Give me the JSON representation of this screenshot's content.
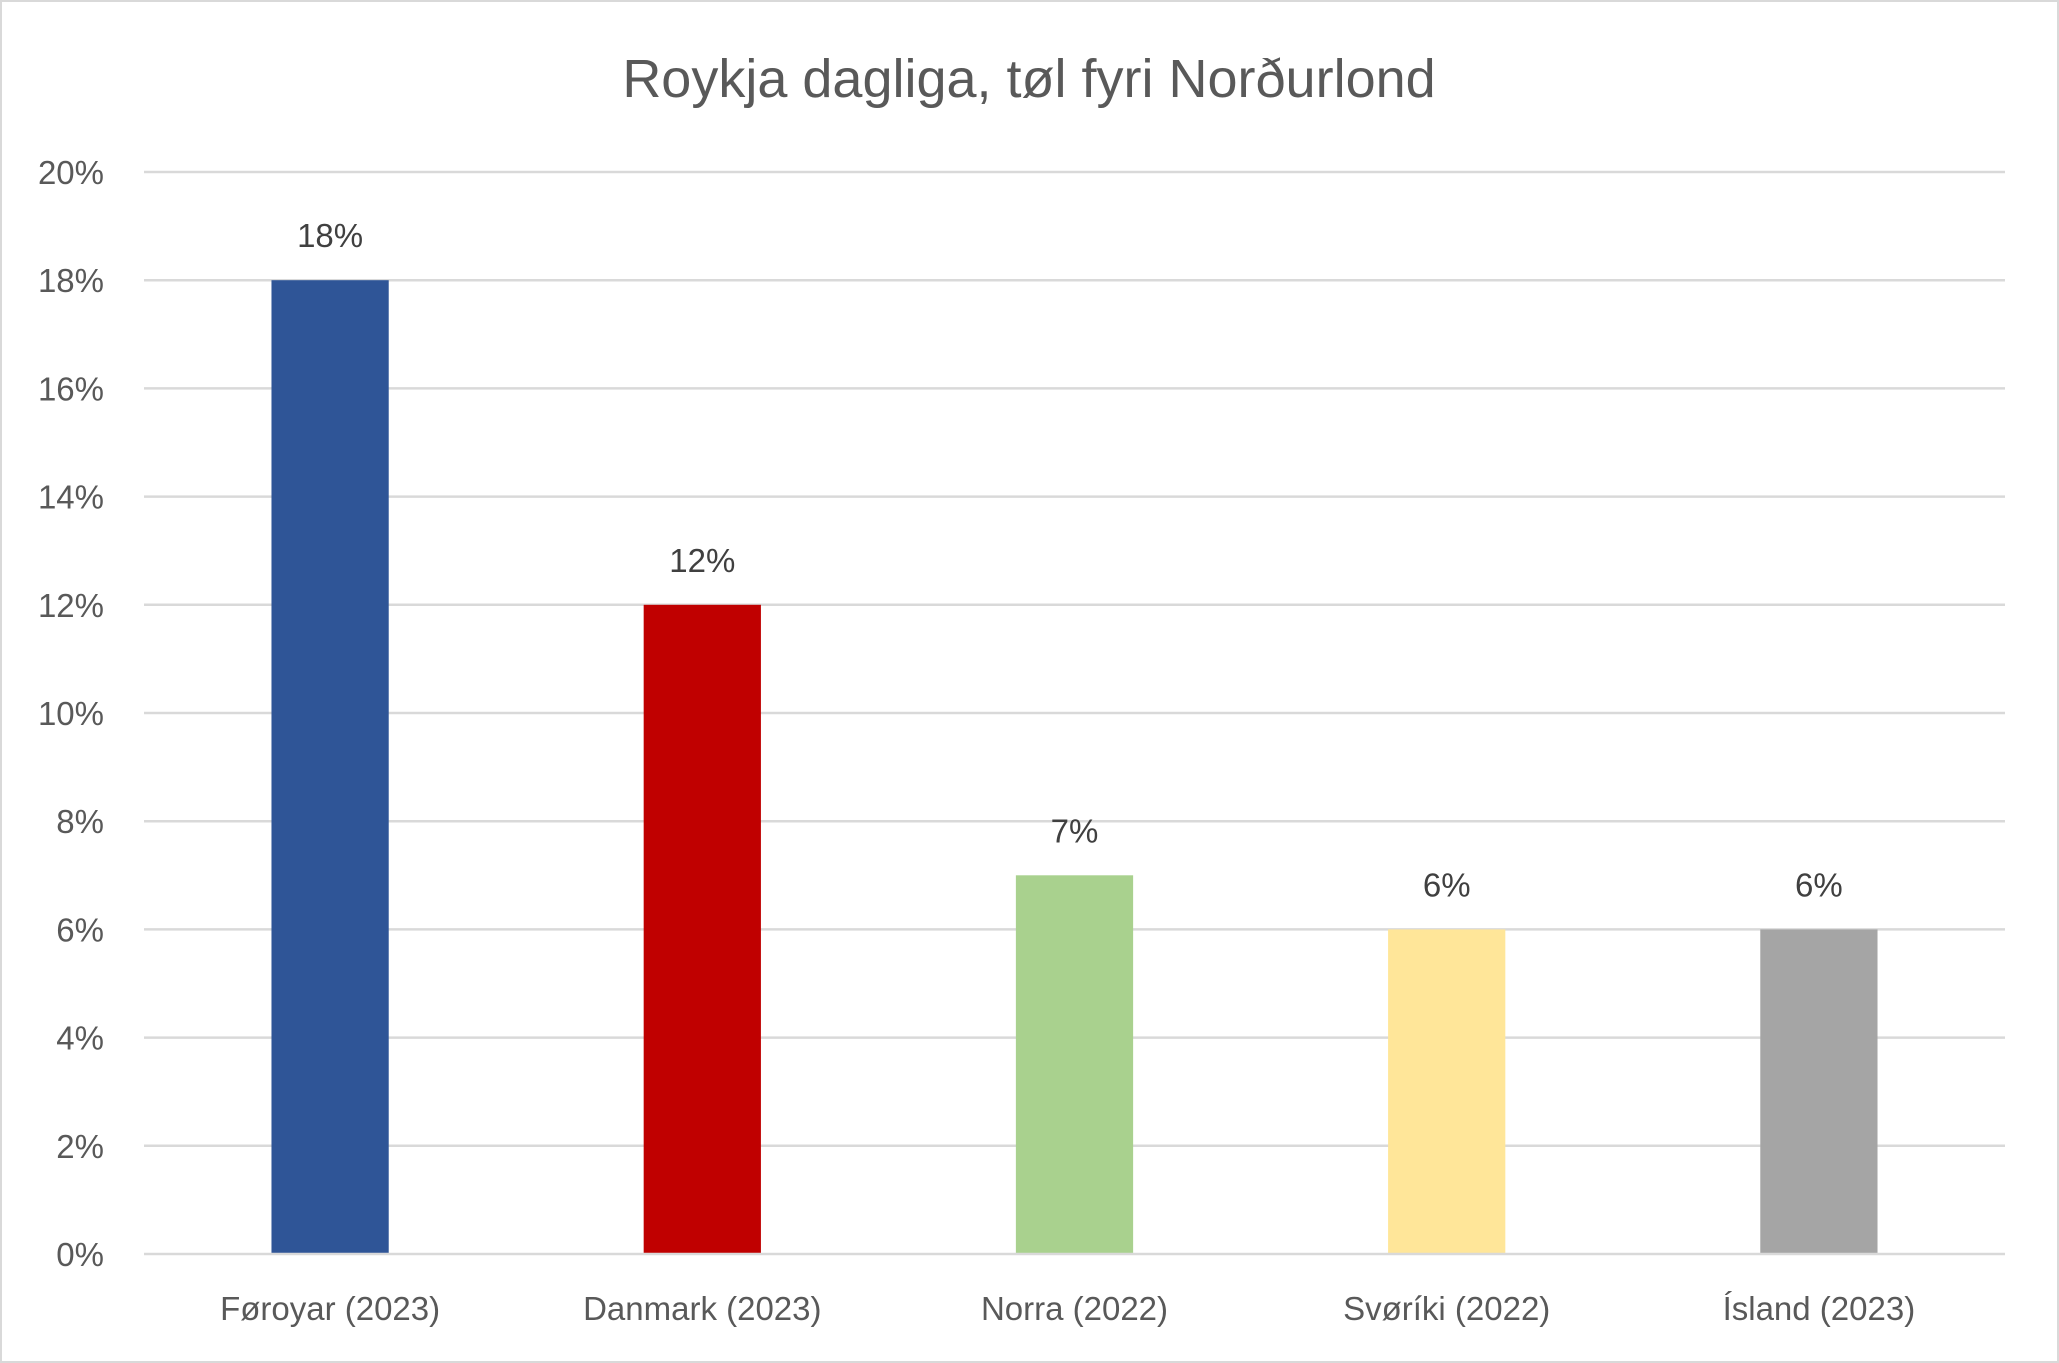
{
  "chart_data": {
    "type": "bar",
    "title": "Roykja dagliga, tøl fyri Norðurlond",
    "xlabel": "",
    "ylabel": "",
    "categories": [
      "Føroyar (2023)",
      "Danmark (2023)",
      "Norra (2022)",
      "Svøríki (2022)",
      "Ísland (2023)"
    ],
    "values": [
      18,
      12,
      7,
      6,
      6
    ],
    "data_labels": [
      "18%",
      "12%",
      "7%",
      "6%",
      "6%"
    ],
    "colors": [
      "#2f5597",
      "#c00000",
      "#a9d18e",
      "#ffe699",
      "#a5a5a5"
    ],
    "ylim": [
      0,
      20
    ],
    "yticks": [
      0,
      2,
      4,
      6,
      8,
      10,
      12,
      14,
      16,
      18,
      20
    ],
    "ytick_labels": [
      "0%",
      "2%",
      "4%",
      "6%",
      "8%",
      "10%",
      "12%",
      "14%",
      "16%",
      "18%",
      "20%"
    ],
    "grid": true,
    "legend": "none"
  }
}
